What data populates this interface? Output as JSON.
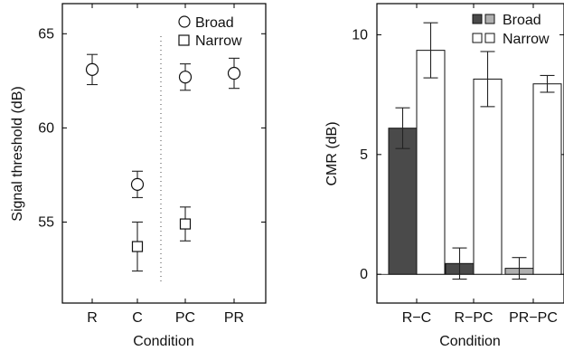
{
  "chart_data": [
    {
      "type": "scatter",
      "ylabel": "Signal threshold (dB)",
      "xlabel": "Condition",
      "categories": [
        "R",
        "C",
        "PC",
        "PR"
      ],
      "ylim": [
        50.7,
        66.6
      ],
      "yticks": [
        55,
        60,
        65
      ],
      "divider_between": [
        "C",
        "PC"
      ],
      "series": [
        {
          "name": "Broad",
          "marker": "circle",
          "values": [
            63.1,
            57.0,
            62.7,
            62.9
          ],
          "err": [
            0.8,
            0.7,
            0.7,
            0.8
          ]
        },
        {
          "name": "Narrow",
          "marker": "square",
          "values": [
            null,
            53.7,
            54.9,
            null
          ],
          "err": [
            null,
            1.3,
            0.9,
            null
          ]
        }
      ]
    },
    {
      "type": "bar",
      "ylabel": "CMR (dB)",
      "xlabel": "Condition",
      "categories": [
        "R−C",
        "R−PC",
        "PR−PC"
      ],
      "ylim": [
        -1.2,
        11.3
      ],
      "yticks": [
        0,
        5,
        10
      ],
      "series": [
        {
          "name": "Broad",
          "values": [
            6.1,
            0.45,
            0.25
          ],
          "err": [
            0.85,
            0.65,
            0.45
          ],
          "colors": [
            "#4a4a4a",
            "#4a4a4a",
            "#b0b0b0"
          ]
        },
        {
          "name": "Narrow",
          "values": [
            9.35,
            8.15,
            7.95
          ],
          "err": [
            1.15,
            1.15,
            0.35
          ],
          "colors": [
            "#ffffff",
            "#ffffff",
            "#ffffff"
          ]
        }
      ],
      "legend_swatches": {
        "Broad": [
          "#4a4a4a",
          "#b0b0b0"
        ],
        "Narrow": [
          "#ffffff",
          "#ffffff"
        ]
      }
    }
  ]
}
